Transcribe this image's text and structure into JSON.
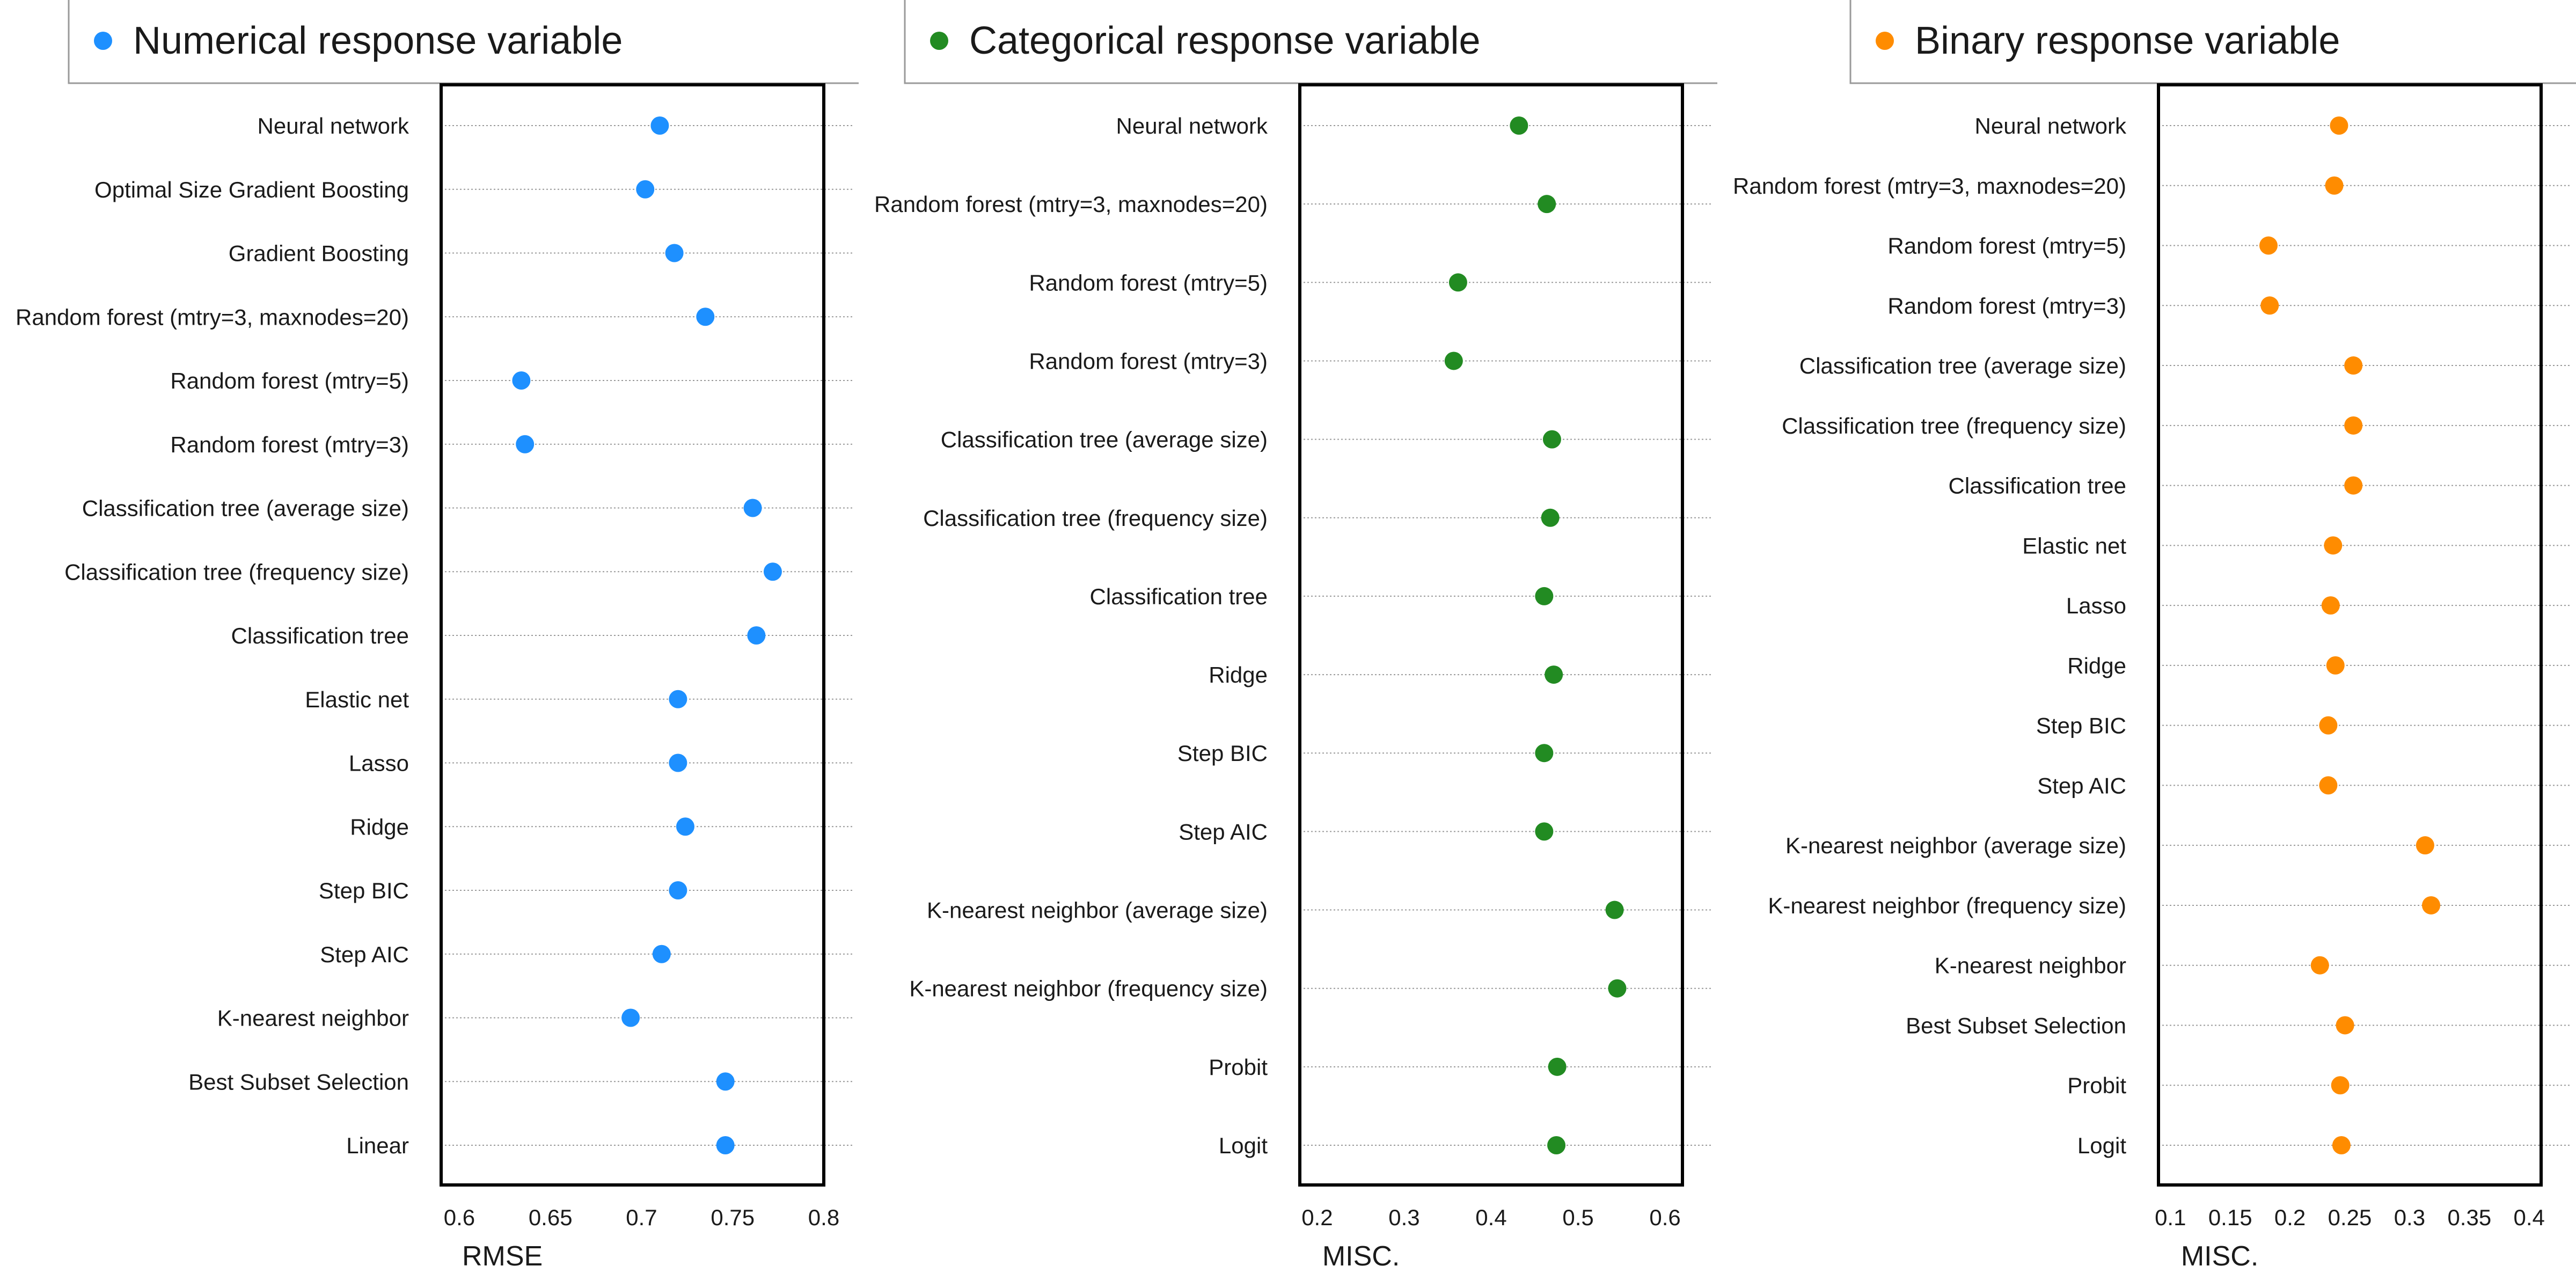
{
  "chart_data": [
    {
      "type": "scatter",
      "title": "Numerical response variable",
      "xlabel": "RMSE",
      "ylabel": "",
      "xlim": [
        0.59,
        0.8
      ],
      "xticks": [
        0.6,
        0.65,
        0.7,
        0.75,
        0.8
      ],
      "tick_labels": [
        "0.6",
        "0.65",
        "0.7",
        "0.75",
        "0.8"
      ],
      "grid": "horizontal dotted",
      "legend": "top-left",
      "color": "#1e90ff",
      "categories": [
        "Neural network",
        "Optimal Size Gradient Boosting",
        "Gradient Boosting",
        "Random forest (mtry=3, maxnodes=20)",
        "Random forest (mtry=5)",
        "Random forest (mtry=3)",
        "Classification tree (average size)",
        "Classification tree (frequency size)",
        "Classification tree",
        "Elastic net",
        "Lasso",
        "Ridge",
        "Step BIC",
        "Step AIC",
        "K-nearest neighbor",
        "Best Subset Selection",
        "Linear"
      ],
      "values": [
        0.71,
        0.702,
        0.718,
        0.735,
        0.634,
        0.636,
        0.761,
        0.772,
        0.763,
        0.72,
        0.72,
        0.724,
        0.72,
        0.711,
        0.694,
        0.746,
        0.746
      ]
    },
    {
      "type": "scatter",
      "title": "Categorical response variable",
      "xlabel": "MISC.",
      "ylabel": "",
      "xlim": [
        0.18,
        0.62
      ],
      "xticks": [
        0.2,
        0.3,
        0.4,
        0.5,
        0.6
      ],
      "tick_labels": [
        "0.2",
        "0.3",
        "0.4",
        "0.5",
        "0.6"
      ],
      "grid": "horizontal dotted",
      "legend": "top-left",
      "color": "#228b22",
      "categories": [
        "Neural network",
        "Random forest (mtry=3, maxnodes=20)",
        "Random forest (mtry=5)",
        "Random forest (mtry=3)",
        "Classification tree (average size)",
        "Classification tree (frequency size)",
        "Classification tree",
        "Ridge",
        "Step BIC",
        "Step AIC",
        "K-nearest neighbor (average size)",
        "K-nearest neighbor (frequency size)",
        "Probit",
        "Logit"
      ],
      "values": [
        0.432,
        0.464,
        0.362,
        0.357,
        0.47,
        0.468,
        0.461,
        0.472,
        0.461,
        0.461,
        0.542,
        0.545,
        0.476,
        0.475
      ]
    },
    {
      "type": "scatter",
      "title": "Binary response variable",
      "xlabel": "MISC.",
      "ylabel": "",
      "xlim": [
        0.09,
        0.41
      ],
      "xticks": [
        0.1,
        0.15,
        0.2,
        0.25,
        0.3,
        0.35,
        0.4
      ],
      "tick_labels": [
        "0.1",
        "0.15",
        "0.2",
        "0.25",
        "0.3",
        "0.35",
        "0.4"
      ],
      "grid": "horizontal dotted",
      "legend": "top-left",
      "color": "#ff8c00",
      "categories": [
        "Neural network",
        "Random forest (mtry=3, maxnodes=20)",
        "Random forest (mtry=5)",
        "Random forest (mtry=3)",
        "Classification tree (average size)",
        "Classification tree (frequency size)",
        "Classification tree",
        "Elastic net",
        "Lasso",
        "Ridge",
        "Step BIC",
        "Step AIC",
        "K-nearest neighbor (average size)",
        "K-nearest neighbor (frequency size)",
        "K-nearest neighbor",
        "Best Subset Selection",
        "Probit",
        "Logit"
      ],
      "values": [
        0.241,
        0.237,
        0.182,
        0.183,
        0.253,
        0.253,
        0.253,
        0.236,
        0.234,
        0.238,
        0.232,
        0.232,
        0.313,
        0.318,
        0.225,
        0.246,
        0.242,
        0.243
      ]
    }
  ]
}
